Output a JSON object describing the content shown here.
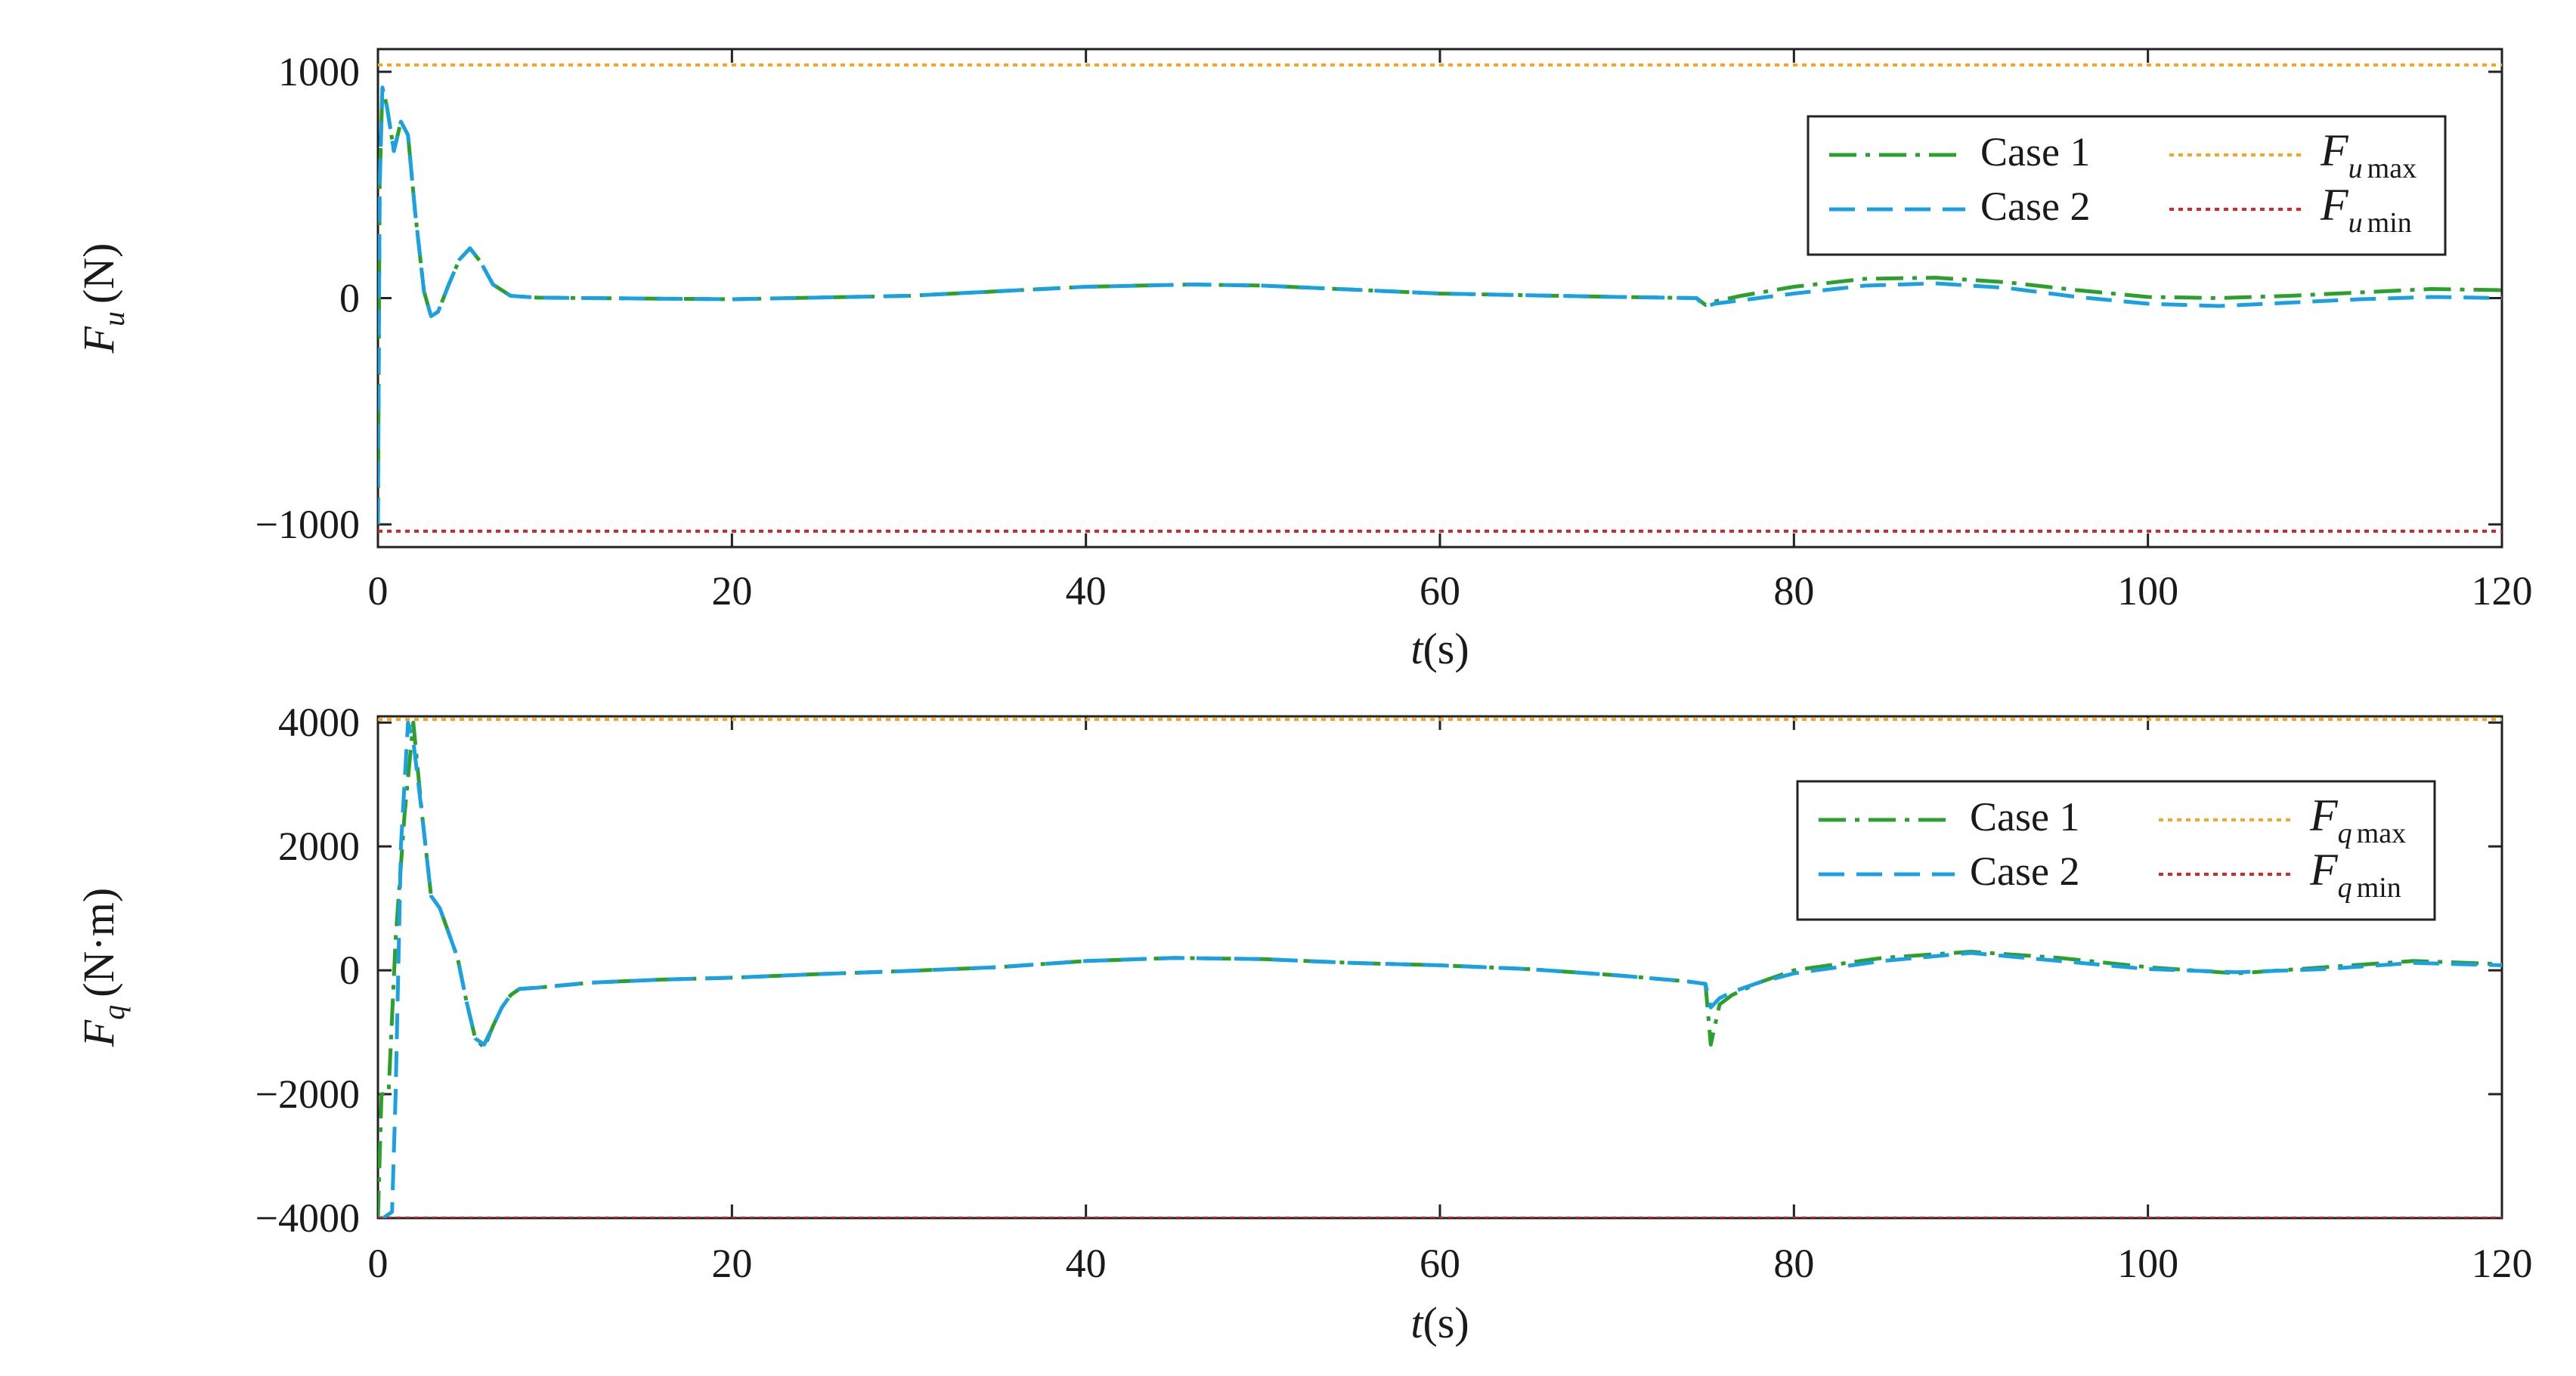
{
  "chart_data": [
    {
      "type": "line",
      "xlabel_italic": "t",
      "xlabel_unit": "(s)",
      "ylabel_symbol": "F",
      "ylabel_sub": "u",
      "ylabel_unit": "(N)",
      "xlim": [
        0,
        120
      ],
      "ylim": [
        -1100,
        1100
      ],
      "xticks": [
        0,
        20,
        40,
        60,
        80,
        100,
        120
      ],
      "yticks": [
        -1000,
        0,
        1000
      ],
      "ytick_labels": [
        "−1000",
        "0",
        "1000"
      ],
      "grid": false,
      "legend_position": "top-right",
      "series": [
        {
          "name": "Case 1",
          "color": "#2ca02c",
          "style": "dashdot",
          "x": [
            0,
            0.1,
            0.25,
            0.5,
            0.9,
            1.3,
            1.7,
            2.1,
            2.6,
            3.0,
            3.4,
            4.0,
            4.6,
            5.2,
            5.8,
            6.5,
            7.5,
            9,
            12,
            20,
            30,
            40,
            46,
            50,
            60,
            70,
            74.5,
            75,
            75.5,
            77,
            80,
            84,
            88,
            92,
            96,
            100,
            104,
            108,
            112,
            116,
            120
          ],
          "y": [
            -1000,
            500,
            930,
            850,
            650,
            780,
            720,
            380,
            30,
            -80,
            -60,
            60,
            170,
            220,
            160,
            60,
            10,
            2,
            0,
            -5,
            10,
            50,
            60,
            55,
            20,
            5,
            0,
            -30,
            -15,
            10,
            50,
            85,
            90,
            70,
            35,
            5,
            0,
            10,
            25,
            40,
            35
          ]
        },
        {
          "name": "Case 2",
          "color": "#1ba1e2",
          "style": "dashed",
          "x": [
            0,
            0.1,
            0.25,
            0.5,
            0.9,
            1.3,
            1.7,
            2.1,
            2.6,
            3.0,
            3.4,
            4.0,
            4.6,
            5.2,
            5.8,
            6.5,
            7.5,
            9,
            12,
            20,
            30,
            40,
            46,
            50,
            60,
            70,
            74.5,
            75,
            75.5,
            77,
            80,
            84,
            88,
            92,
            96,
            100,
            104,
            108,
            112,
            116,
            120
          ],
          "y": [
            -1000,
            500,
            930,
            850,
            650,
            780,
            720,
            380,
            30,
            -80,
            -60,
            60,
            170,
            220,
            160,
            60,
            10,
            2,
            0,
            -5,
            10,
            50,
            60,
            55,
            20,
            5,
            0,
            -40,
            -25,
            -10,
            20,
            55,
            65,
            45,
            5,
            -25,
            -35,
            -20,
            -5,
            5,
            0
          ]
        },
        {
          "name": "F",
          "sub": "u max",
          "color": "#f5a623",
          "style": "dotted",
          "x": [
            0,
            120
          ],
          "y": [
            1030,
            1030
          ]
        },
        {
          "name": "F",
          "sub": "u min",
          "color": "#d62728",
          "style": "dotted",
          "x": [
            0,
            120
          ],
          "y": [
            -1030,
            -1030
          ]
        }
      ]
    },
    {
      "type": "line",
      "xlabel_italic": "t",
      "xlabel_unit": "(s)",
      "ylabel_symbol": "F",
      "ylabel_sub": "q",
      "ylabel_unit": "(N·m)",
      "xlim": [
        0,
        120
      ],
      "ylim": [
        -4000,
        4100
      ],
      "xticks": [
        0,
        20,
        40,
        60,
        80,
        100,
        120
      ],
      "yticks": [
        -4000,
        -2000,
        0,
        2000,
        4000
      ],
      "ytick_labels": [
        "−4000",
        "−2000",
        "0",
        "2000",
        "4000"
      ],
      "grid": false,
      "legend_position": "top-right",
      "series": [
        {
          "name": "Case 1",
          "color": "#2ca02c",
          "style": "dashdot",
          "x": [
            0,
            0.2,
            0.6,
            1.0,
            1.5,
            2.0,
            2.5,
            3.0,
            3.5,
            4.0,
            4.5,
            5.0,
            5.5,
            6.0,
            6.5,
            7.0,
            7.5,
            8.0,
            9,
            12,
            16,
            20,
            25,
            30,
            35,
            40,
            45,
            50,
            55,
            60,
            65,
            70,
            74,
            75,
            75.3,
            75.8,
            76.5,
            78,
            80,
            85,
            90,
            95,
            100,
            105,
            110,
            115,
            120
          ],
          "y": [
            -4000,
            -2000,
            -2000,
            500,
            2500,
            4000,
            2500,
            1200,
            1000,
            600,
            200,
            -500,
            -1100,
            -1250,
            -900,
            -600,
            -400,
            -300,
            -280,
            -200,
            -150,
            -120,
            -60,
            -10,
            50,
            150,
            200,
            180,
            120,
            80,
            20,
            -80,
            -180,
            -220,
            -1200,
            -550,
            -400,
            -200,
            0,
            200,
            300,
            200,
            50,
            -50,
            50,
            150,
            100
          ]
        },
        {
          "name": "Case 2",
          "color": "#1ba1e2",
          "style": "dashed",
          "x": [
            0,
            0.3,
            0.8,
            1.0,
            1.3,
            1.7,
            2.0,
            2.5,
            3.0,
            3.5,
            4.0,
            4.5,
            5.0,
            5.5,
            6.0,
            6.5,
            7.0,
            7.5,
            8.0,
            9,
            12,
            16,
            20,
            25,
            30,
            35,
            40,
            45,
            50,
            55,
            60,
            65,
            70,
            74,
            75,
            75.3,
            75.8,
            76.5,
            78,
            80,
            85,
            90,
            95,
            100,
            105,
            110,
            115,
            120
          ],
          "y": [
            -4000,
            -4000,
            -3900,
            -2000,
            2000,
            4000,
            3700,
            2500,
            1200,
            1000,
            600,
            200,
            -500,
            -1100,
            -1200,
            -900,
            -600,
            -400,
            -300,
            -280,
            -200,
            -150,
            -120,
            -60,
            -10,
            50,
            150,
            200,
            180,
            120,
            80,
            20,
            -80,
            -180,
            -220,
            -600,
            -450,
            -350,
            -200,
            -50,
            150,
            280,
            150,
            20,
            -30,
            20,
            120,
            80
          ]
        },
        {
          "name": "F",
          "sub": "q max",
          "color": "#f5a623",
          "style": "dotted",
          "x": [
            0,
            120
          ],
          "y": [
            4050,
            4050
          ]
        },
        {
          "name": "F",
          "sub": "q min",
          "color": "#d62728",
          "style": "dotted",
          "x": [
            0,
            120
          ],
          "y": [
            -4000,
            -4000
          ]
        }
      ]
    }
  ]
}
